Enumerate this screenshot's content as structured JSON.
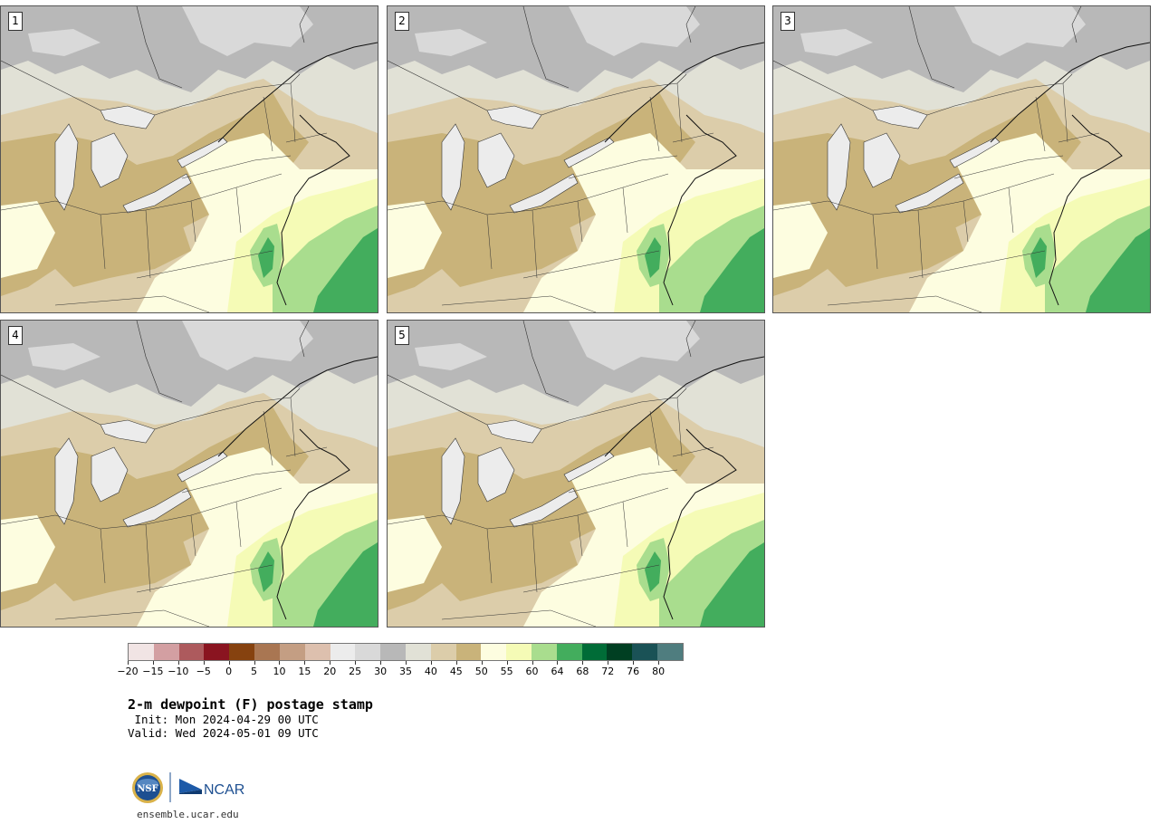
{
  "panels": [
    {
      "label": "1"
    },
    {
      "label": "2"
    },
    {
      "label": "3"
    },
    {
      "label": "4"
    },
    {
      "label": "5"
    }
  ],
  "colorbar": {
    "colors": [
      "#f1e4e4",
      "#d39fa2",
      "#ad5a5d",
      "#8a1420",
      "#86420f",
      "#a97652",
      "#c49e83",
      "#ddc0ae",
      "#ececec",
      "#d9d9d9",
      "#b8b8b8",
      "#e1e1d6",
      "#dccdaa",
      "#c9b37a",
      "#fdfde0",
      "#f5fbb6",
      "#a9dd8e",
      "#43ad5d",
      "#006c37",
      "#003f22",
      "#1a5256",
      "#4f7d7f"
    ],
    "ticks": [
      "−20",
      "−15",
      "−10",
      "−5",
      "0",
      "5",
      "10",
      "15",
      "20",
      "25",
      "30",
      "35",
      "40",
      "45",
      "50",
      "55",
      "60",
      "64",
      "68",
      "72",
      "76",
      "80"
    ]
  },
  "title": "2-m dewpoint (F) postage stamp",
  "init": " Init: Mon 2024-04-29 00 UTC",
  "valid": "Valid: Wed 2024-05-01 09 UTC",
  "logos": {
    "nsf": "NSF",
    "ncar": "NCAR"
  },
  "website": "ensemble.ucar.edu",
  "map_colors": {
    "gray_dark": "#b8b8b8",
    "gray_light": "#d9d9d9",
    "pale": "#e1e1d6",
    "tan_light": "#dccdaa",
    "tan": "#c9b37a",
    "cream": "#fdfde0",
    "yellow": "#f5fbb6",
    "green_light": "#a9dd8e",
    "green": "#43ad5d"
  }
}
